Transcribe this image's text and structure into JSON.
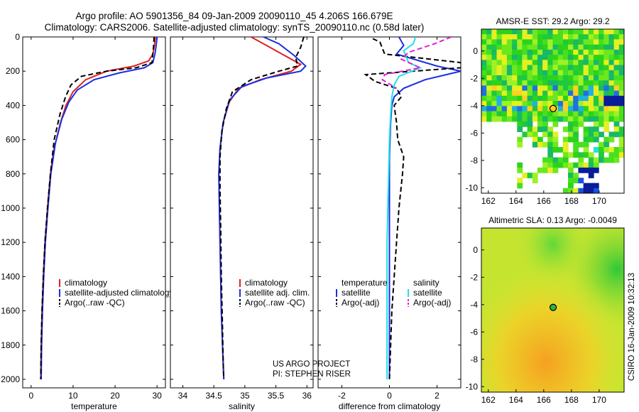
{
  "figure": {
    "title_line1": "Argo profile: AO 5901356_84 09-Jan-2009 20090110_45 4.206S 166.679E",
    "title_line2": "Climatology: CARS2006. Satellite-adjusted climatology: synTS_20090110.nc (0.58d later)",
    "side_caption": "CSIRO 16-Jan-2009 10:32:13",
    "project_line1": "US ARGO PROJECT",
    "project_line2": "PI: STEPHEN RISER"
  },
  "colors": {
    "climatology": "#e02020",
    "satellite": "#1a2ee0",
    "argo": "#000000",
    "salinity_sat": "#22e0e8",
    "salinity_argo": "#e020d8"
  },
  "chart_data": [
    {
      "type": "line",
      "id": "temperature",
      "xlabel": "temperature",
      "xlim": [
        -2,
        32
      ],
      "ylim": [
        0,
        2050
      ],
      "xticks": [
        0,
        10,
        20,
        30
      ],
      "yticks": [
        0,
        200,
        400,
        600,
        800,
        1000,
        1200,
        1400,
        1600,
        1800,
        2000
      ],
      "legend": {
        "position": "lower-left",
        "entries": [
          "climatology",
          "satellite-adjusted climatology",
          "Argo(..raw -QC)"
        ]
      },
      "series": [
        {
          "name": "climatology",
          "color_key": "climatology",
          "style": "solid",
          "x": [
            29.6,
            29.4,
            29.0,
            28.0,
            24.5,
            18.0,
            13.0,
            10.0,
            8.3,
            7.0,
            5.5,
            4.6,
            3.9,
            3.3,
            2.9,
            2.6,
            2.4,
            2.3
          ],
          "depth": [
            0,
            50,
            100,
            140,
            170,
            200,
            250,
            320,
            400,
            500,
            650,
            800,
            1000,
            1200,
            1400,
            1600,
            1800,
            2000
          ]
        },
        {
          "name": "satellite-adjusted climatology",
          "color_key": "satellite",
          "style": "solid",
          "x": [
            30.0,
            29.8,
            29.5,
            29.0,
            27.0,
            21.0,
            15.0,
            11.0,
            9.0,
            7.3,
            5.8,
            4.7,
            4.0,
            3.4,
            3.0,
            2.7,
            2.5,
            2.4
          ],
          "depth": [
            0,
            50,
            100,
            150,
            180,
            210,
            250,
            310,
            380,
            480,
            620,
            800,
            1000,
            1200,
            1400,
            1600,
            1800,
            2000
          ]
        },
        {
          "name": "Argo(..raw -QC)",
          "color_key": "argo",
          "style": "dashed",
          "x": [
            29.3,
            29.2,
            28.8,
            25.0,
            18.0,
            12.0,
            9.5,
            8.2,
            6.9,
            5.5,
            4.6,
            3.9,
            3.3,
            2.9,
            2.6,
            2.4,
            2.3
          ],
          "depth": [
            0,
            50,
            150,
            180,
            200,
            230,
            280,
            350,
            450,
            600,
            800,
            1000,
            1200,
            1400,
            1600,
            1800,
            2000
          ]
        }
      ]
    },
    {
      "type": "line",
      "id": "salinity",
      "xlabel": "salinity",
      "xlim": [
        33.8,
        36.1
      ],
      "ylim": [
        0,
        2050
      ],
      "xticks": [
        34,
        34.5,
        35,
        35.5,
        36
      ],
      "xticklabels": [
        "34",
        "34.5",
        "35",
        "35.5",
        "36"
      ],
      "legend": {
        "position": "lower-right",
        "entries": [
          "climatology",
          "satellite adj. clim.",
          "Argo(..raw -QC)"
        ]
      },
      "series": [
        {
          "name": "climatology",
          "color_key": "climatology",
          "style": "solid",
          "x": [
            35.1,
            35.3,
            35.55,
            35.9,
            35.75,
            35.25,
            34.9,
            34.75,
            34.65,
            34.6,
            34.58,
            34.59,
            34.6,
            34.61,
            34.62,
            34.64,
            34.65,
            34.66
          ],
          "depth": [
            0,
            40,
            90,
            160,
            200,
            250,
            300,
            380,
            500,
            650,
            800,
            1000,
            1200,
            1400,
            1600,
            1800,
            1900,
            2000
          ]
        },
        {
          "name": "satellite adj. clim.",
          "color_key": "satellite",
          "style": "solid",
          "x": [
            35.3,
            35.55,
            35.8,
            35.98,
            35.9,
            35.35,
            34.95,
            34.75,
            34.65,
            34.6,
            34.58,
            34.59,
            34.6,
            34.61,
            34.62,
            34.64,
            34.65,
            34.66
          ],
          "depth": [
            0,
            40,
            110,
            170,
            200,
            240,
            290,
            370,
            500,
            650,
            800,
            1000,
            1200,
            1400,
            1600,
            1800,
            1900,
            2000
          ]
        },
        {
          "name": "Argo(..raw -QC)",
          "color_key": "argo",
          "style": "dashed",
          "x": [
            35.95,
            35.9,
            35.82,
            35.85,
            35.55,
            35.1,
            34.8,
            34.7,
            34.63,
            34.6,
            34.6,
            34.61,
            34.62,
            34.64,
            34.65,
            34.66
          ],
          "depth": [
            0,
            60,
            120,
            170,
            200,
            250,
            320,
            420,
            550,
            700,
            900,
            1100,
            1400,
            1700,
            1900,
            2000
          ]
        }
      ]
    },
    {
      "type": "line",
      "id": "difference",
      "xlabel": "difference from climatology",
      "xlim": [
        -3,
        3
      ],
      "ylim": [
        0,
        2050
      ],
      "xticks": [
        -2,
        0,
        2
      ],
      "legend": {
        "position": "lower-center",
        "headers": [
          "temperature",
          "salinity"
        ],
        "entries": [
          "satellite",
          "Argo(-adj)",
          "satellite",
          "Argo(-adj)"
        ]
      },
      "series": [
        {
          "name": "satellite",
          "group": "temperature",
          "color_key": "satellite",
          "style": "solid",
          "x": [
            0.4,
            0.6,
            0.3,
            2.0,
            3.0,
            1.5,
            0.6,
            0.2,
            0.1,
            0.05,
            0.0,
            0.0,
            0.0
          ],
          "depth": [
            0,
            50,
            100,
            170,
            200,
            250,
            300,
            350,
            400,
            500,
            700,
            1000,
            2000
          ]
        },
        {
          "name": "Argo(-adj)",
          "group": "temperature",
          "color_key": "argo",
          "style": "dashed",
          "x": [
            -0.7,
            -0.4,
            -0.2,
            3.0,
            3.0,
            -1.0,
            -0.6,
            0.3,
            0.5,
            0.2,
            0.3,
            0.35,
            0.6,
            0.55,
            0.4,
            0.3,
            0.2,
            0.1,
            0.05,
            0.0
          ],
          "depth": [
            10,
            30,
            100,
            150,
            180,
            220,
            260,
            300,
            350,
            400,
            500,
            600,
            700,
            800,
            1000,
            1200,
            1400,
            1600,
            1800,
            2000
          ]
        },
        {
          "name": "satellite",
          "group": "salinity",
          "color_key": "salinity_sat",
          "style": "solid",
          "x": [
            1.1,
            1.0,
            0.6,
            0.8,
            1.3,
            0.4,
            0.2,
            0.1,
            0.05,
            0.0,
            -0.1,
            -0.1
          ],
          "depth": [
            0,
            40,
            80,
            150,
            180,
            230,
            280,
            350,
            450,
            600,
            1200,
            2000
          ]
        },
        {
          "name": "Argo(-adj)",
          "group": "salinity",
          "color_key": "salinity_argo",
          "style": "dashed",
          "x": [
            2.6,
            1.9,
            0.8,
            0.5,
            1.3,
            -0.2,
            -0.3,
            0.3
          ],
          "depth": [
            0,
            40,
            90,
            130,
            180,
            220,
            250,
            300
          ]
        }
      ]
    },
    {
      "type": "heatmap",
      "id": "sst_map",
      "title": "AMSR-E SST: 29.2  Argo: 29.2",
      "xlim": [
        161.5,
        171.8
      ],
      "ylim": [
        -10.4,
        1.6
      ],
      "xticks": [
        162,
        164,
        166,
        168,
        170
      ],
      "yticks": [
        0,
        -2,
        -4,
        -6,
        -8,
        -10
      ],
      "marker": {
        "lon": 166.679,
        "lat": -4.206
      }
    },
    {
      "type": "heatmap",
      "id": "sla_map",
      "title": "Altimetric SLA: 0.13  Argo: -0.0049",
      "xlim": [
        161.5,
        171.8
      ],
      "ylim": [
        -10.4,
        1.6
      ],
      "xticks": [
        162,
        164,
        166,
        168,
        170
      ],
      "yticks": [
        0,
        -2,
        -4,
        -6,
        -8,
        -10
      ],
      "marker": {
        "lon": 166.679,
        "lat": -4.206
      }
    }
  ]
}
